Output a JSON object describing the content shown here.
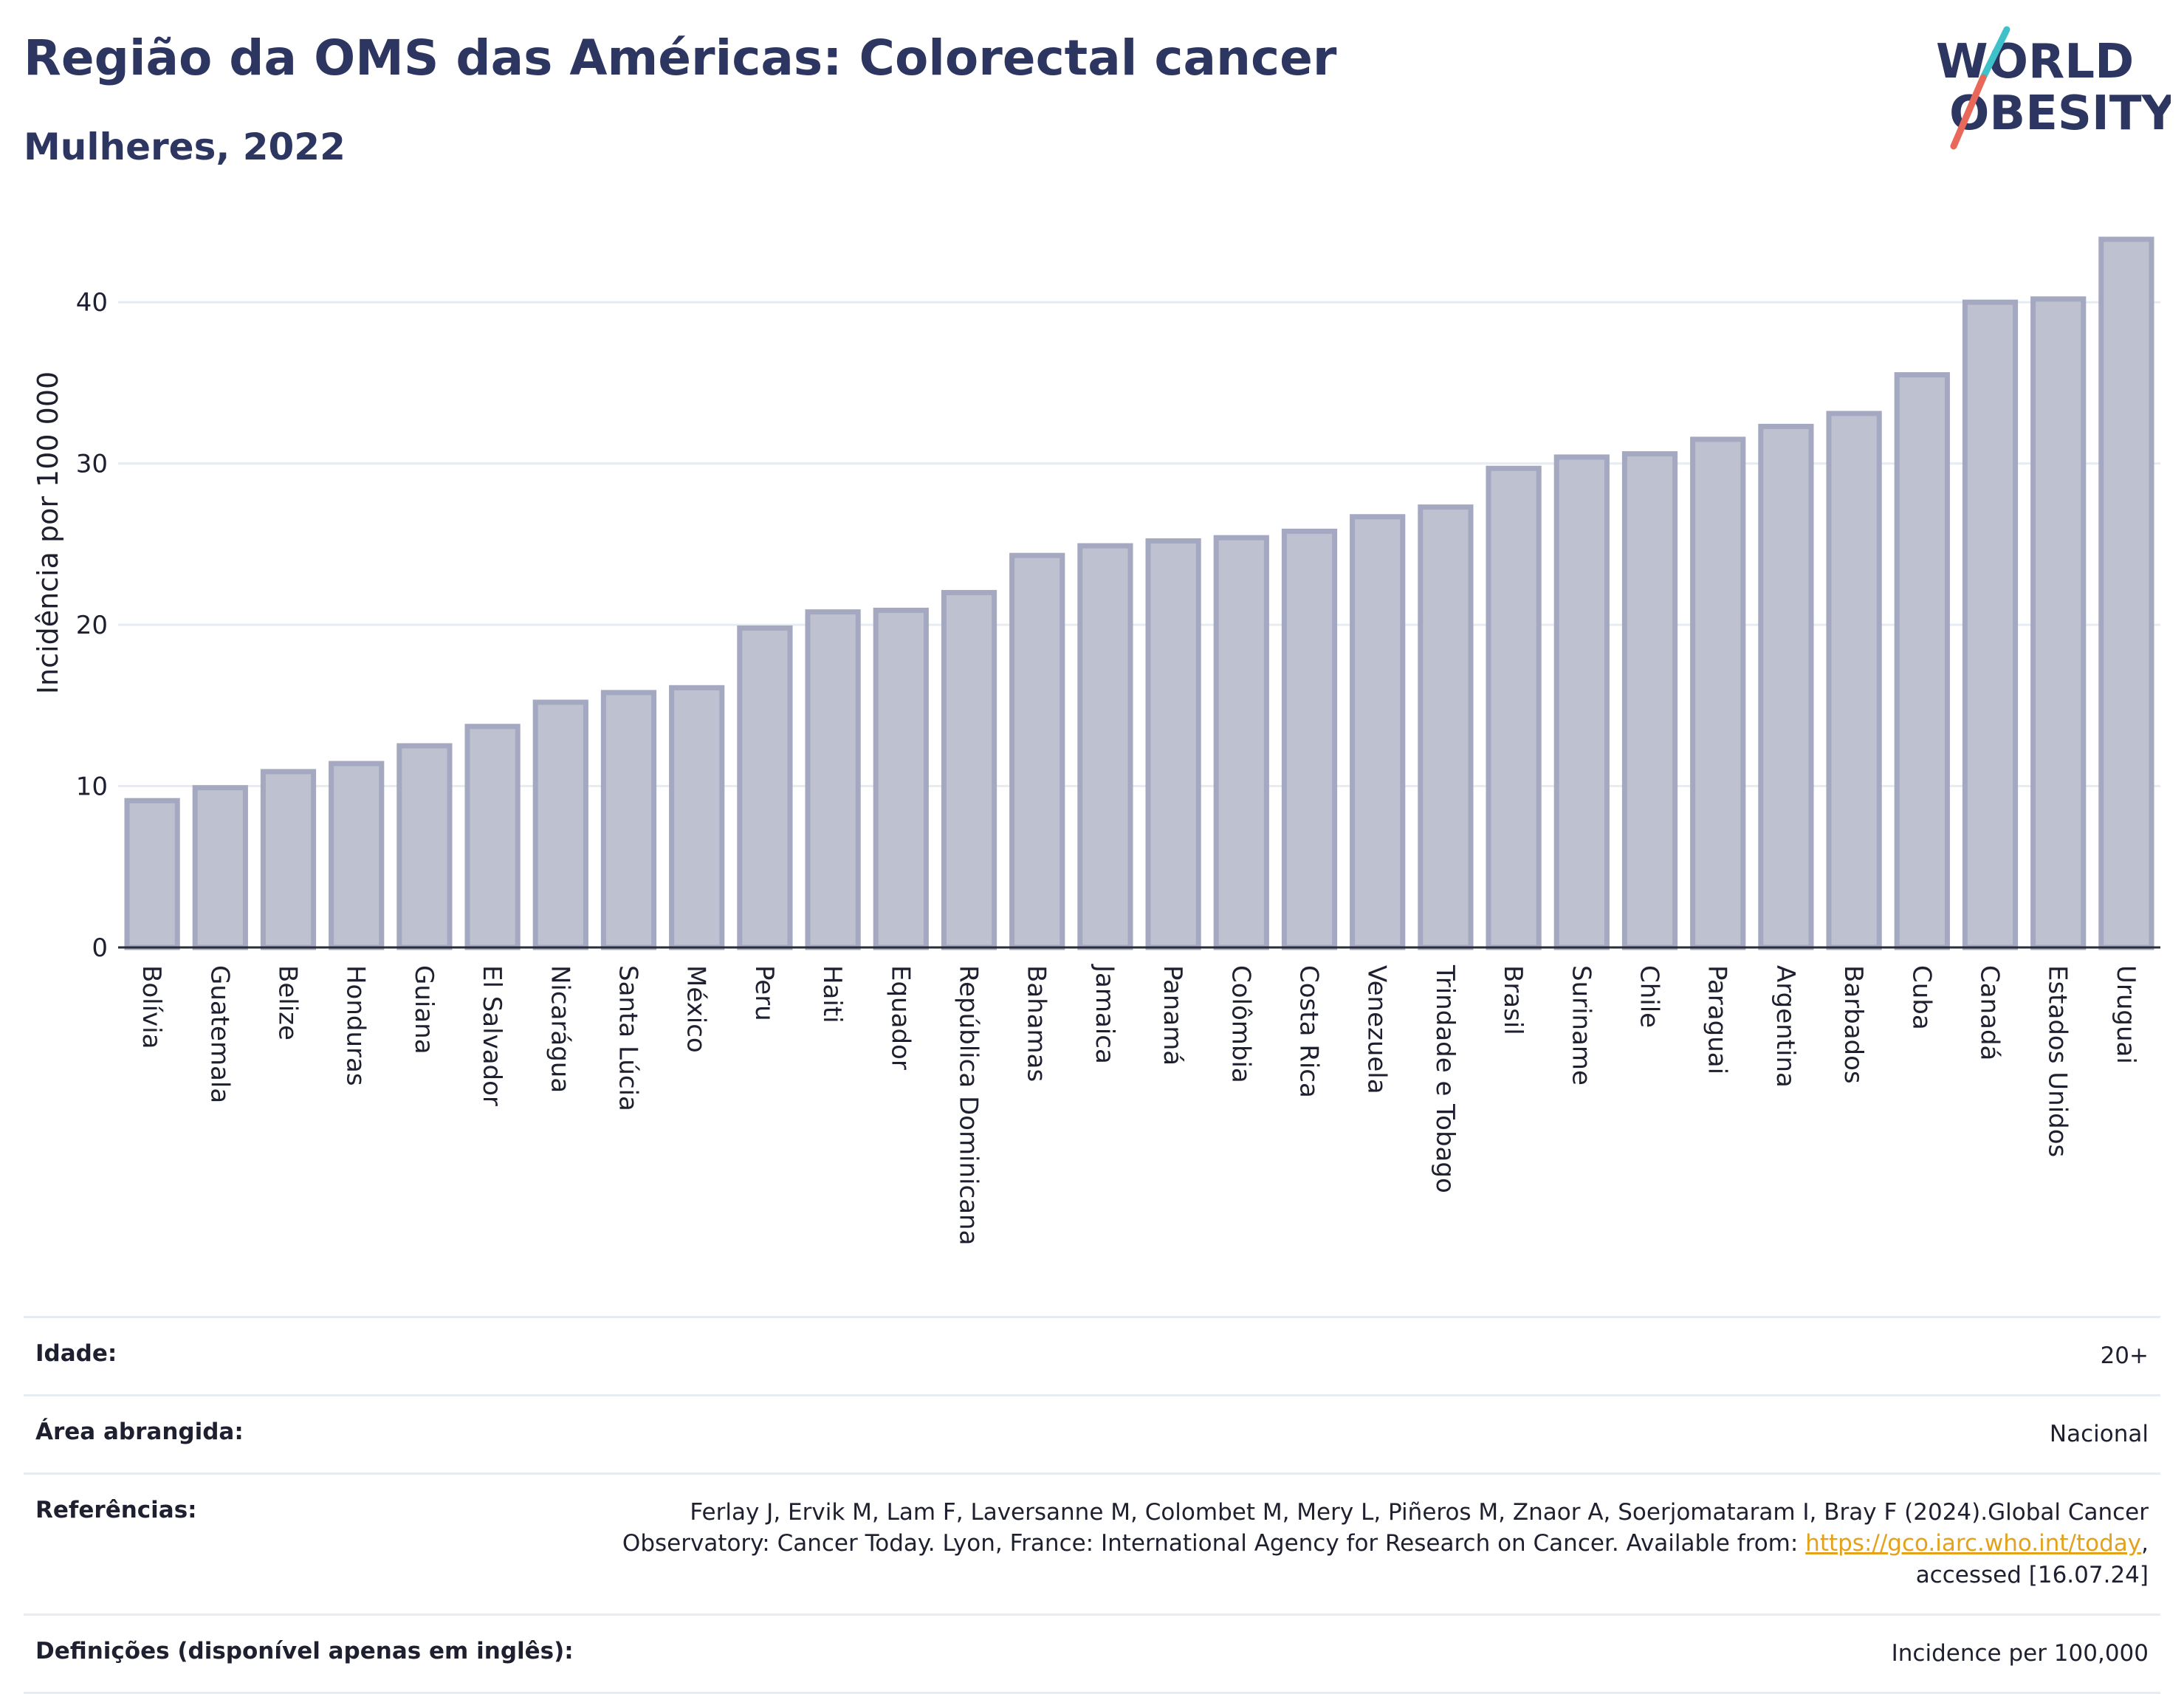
{
  "header": {
    "title": "Região da OMS das Américas: Colorectal cancer",
    "subtitle": "Mulheres, 2022"
  },
  "logo": {
    "line1": "WORLD",
    "line2": "OBESITY",
    "colors": {
      "text": "#2d3561",
      "slash_teal": "#3fc1c9",
      "slash_red": "#e8685a"
    }
  },
  "chart_data": {
    "type": "bar",
    "categories": [
      "Bolívia",
      "Guatemala",
      "Belize",
      "Honduras",
      "Guiana",
      "El Salvador",
      "Nicarágua",
      "Santa Lúcia",
      "México",
      "Peru",
      "Haiti",
      "Equador",
      "República Dominicana",
      "Bahamas",
      "Jamaica",
      "Panamá",
      "Colômbia",
      "Costa Rica",
      "Venezuela",
      "Trindade e Tobago",
      "Brasil",
      "Suriname",
      "Chile",
      "Paraguai",
      "Argentina",
      "Barbados",
      "Cuba",
      "Canadá",
      "Estados Unidos",
      "Uruguai"
    ],
    "values": [
      9.1,
      9.9,
      10.9,
      11.4,
      12.5,
      13.7,
      15.2,
      15.8,
      16.1,
      19.8,
      20.8,
      20.9,
      22.0,
      24.3,
      24.9,
      25.2,
      25.4,
      25.8,
      26.7,
      27.3,
      29.7,
      30.4,
      30.6,
      31.5,
      32.3,
      33.1,
      35.5,
      40.0,
      40.2,
      43.9
    ],
    "title": "Região da OMS das Américas: Colorectal cancer",
    "xlabel": "",
    "ylabel": "Incidência por 100 000",
    "ylim": [
      0,
      45
    ],
    "yticks": [
      0,
      10,
      20,
      30,
      40
    ],
    "grid": true,
    "colors": {
      "bar_fill": "#bec1d0",
      "bar_stroke": "#a4a8c0",
      "grid": "#e6ecf2",
      "axis": "#2a2d3a"
    }
  },
  "info": {
    "rows": [
      {
        "label": "Idade:",
        "value": "20+"
      },
      {
        "label": "Área abrangida:",
        "value": "Nacional"
      },
      {
        "label": "Referências:",
        "value_pre": "Ferlay J, Ervik M, Lam F, Laversanne M, Colombet M, Mery L, Piñeros M, Znaor A, Soerjomataram I, Bray F (2024).Global Cancer Observatory: Cancer Today. Lyon, France: International Agency for Research on Cancer. Available from: ",
        "link": "https://gco.iarc.who.int/today",
        "value_post": ", accessed [16.07.24]"
      },
      {
        "label": "Definições (disponível apenas em inglês):",
        "value": "Incidence per 100,000"
      }
    ]
  }
}
